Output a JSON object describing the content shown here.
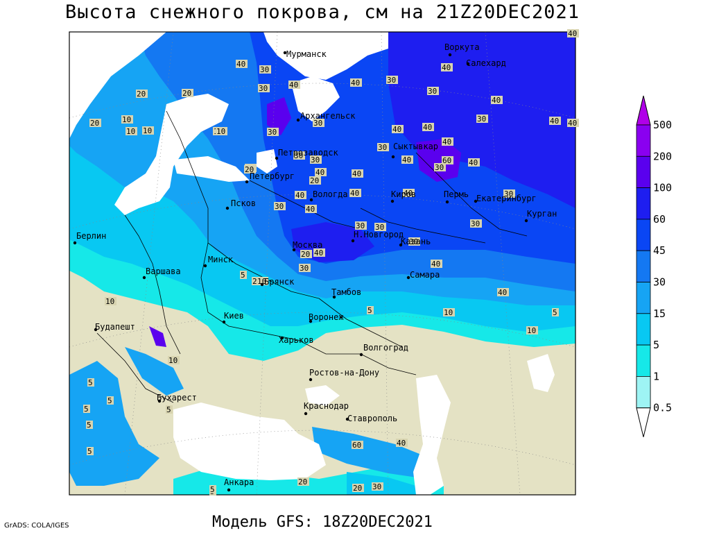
{
  "title": "Высота снежного покрова, см на 21Z20DEC2021",
  "footer": "Модель GFS: 18Z20DEC2021",
  "credit": "GrADS: COLA/IGES",
  "legend": {
    "levels": [
      {
        "label": "500",
        "color": "#b000e8"
      },
      {
        "label": "200",
        "color": "#8a00f0"
      },
      {
        "label": "100",
        "color": "#5a00ee"
      },
      {
        "label": "60",
        "color": "#1e1ef0"
      },
      {
        "label": "45",
        "color": "#0a46f4"
      },
      {
        "label": "30",
        "color": "#1478f2"
      },
      {
        "label": "15",
        "color": "#16a4f4"
      },
      {
        "label": "5",
        "color": "#08c8f2"
      },
      {
        "label": "1",
        "color": "#16e8e8"
      },
      {
        "label": "0.5",
        "color": "#9ef4f4"
      }
    ],
    "bottom_color": "#ffffff"
  },
  "map": {
    "colors": {
      "land": "#e4e2c4",
      "sea": "#ffffff",
      "border": "#000000",
      "grid": "#888888"
    },
    "cities": [
      {
        "name": "Мурманск"
      },
      {
        "name": "Воркута"
      },
      {
        "name": "Салехард"
      },
      {
        "name": "Архангельск"
      },
      {
        "name": "Сыктывкар"
      },
      {
        "name": "Петрозаводск"
      },
      {
        "name": "Петербург"
      },
      {
        "name": "Вологда"
      },
      {
        "name": "Киров"
      },
      {
        "name": "Пермь"
      },
      {
        "name": "Екатеринбург"
      },
      {
        "name": "Курган"
      },
      {
        "name": "Псков"
      },
      {
        "name": "Берлин"
      },
      {
        "name": "Варшава"
      },
      {
        "name": "Минск"
      },
      {
        "name": "Москва"
      },
      {
        "name": "Н.Новгород"
      },
      {
        "name": "Казань"
      },
      {
        "name": "Самара"
      },
      {
        "name": "Брянск"
      },
      {
        "name": "Тамбов"
      },
      {
        "name": "Киев"
      },
      {
        "name": "Воронеж"
      },
      {
        "name": "Будапешт"
      },
      {
        "name": "Харьков"
      },
      {
        "name": "Волгоград"
      },
      {
        "name": "Ростов-на-Дону"
      },
      {
        "name": "Бухарест"
      },
      {
        "name": "Краснодар"
      },
      {
        "name": "Ставрополь"
      },
      {
        "name": "Анкара"
      }
    ],
    "contour_labels": [
      "40",
      "30",
      "40",
      "30",
      "40",
      "30",
      "30",
      "20",
      "40",
      "20",
      "30",
      "30",
      "30",
      "40",
      "40",
      "40",
      "10",
      "10",
      "20",
      "10",
      "30",
      "30",
      "40",
      "30",
      "40",
      "40",
      "40",
      "40",
      "60",
      "40",
      "40",
      "40",
      "30",
      "20",
      "40",
      "40",
      "30",
      "40",
      "30",
      "30",
      "30",
      "40",
      "20",
      "20",
      "30",
      "40",
      "30",
      "5",
      "5",
      "10",
      "5",
      "10",
      "10",
      "10",
      "5",
      "5",
      "5",
      "5",
      "5",
      "5",
      "20",
      "60",
      "40",
      "20",
      "30",
      "40",
      "5",
      "5",
      "40",
      "30",
      "20",
      "20",
      "10",
      "10",
      "10"
    ]
  }
}
